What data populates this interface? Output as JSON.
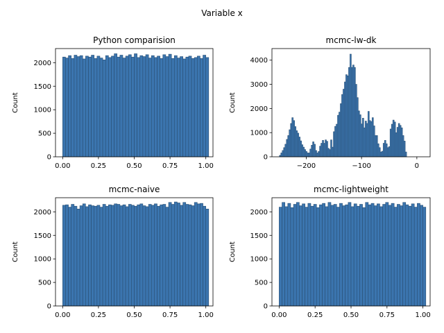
{
  "figure": {
    "suptitle": "Variable x"
  },
  "style": {
    "bar_fill": "#3b75af",
    "bar_edge": "#2a4f73",
    "frame": "#000000"
  },
  "chart_data": [
    {
      "type": "bar",
      "title": "Python comparision",
      "xlabel": "",
      "ylabel": "Count",
      "xlim": [
        -0.05,
        1.05
      ],
      "ylim": [
        0,
        2300
      ],
      "xticks": [
        0.0,
        0.25,
        0.5,
        0.75,
        1.0
      ],
      "xtick_labels": [
        "0.00",
        "0.25",
        "0.50",
        "0.75",
        "1.00"
      ],
      "yticks": [
        0,
        500,
        1000,
        1500,
        2000
      ],
      "ytick_labels": [
        "0",
        "500",
        "1000",
        "1500",
        "2000"
      ],
      "bin_start": 0,
      "bin_width": 0.02,
      "values": [
        2120,
        2100,
        2150,
        2090,
        2160,
        2130,
        2150,
        2080,
        2140,
        2120,
        2160,
        2090,
        2140,
        2100,
        2060,
        2150,
        2110,
        2140,
        2190,
        2120,
        2160,
        2100,
        2140,
        2170,
        2120,
        2190,
        2110,
        2150,
        2130,
        2170,
        2100,
        2150,
        2110,
        2140,
        2090,
        2170,
        2130,
        2180,
        2090,
        2150,
        2100,
        2130,
        2080,
        2120,
        2140,
        2090,
        2110,
        2140,
        2090,
        2160,
        2110
      ]
    },
    {
      "type": "bar",
      "title": "mcmc-lw-dk",
      "xlabel": "",
      "ylabel": "Count",
      "xlim": [
        -262,
        24
      ],
      "ylim": [
        0,
        4480
      ],
      "xticks": [
        -200,
        -100,
        0
      ],
      "xtick_labels": [
        "−200",
        "−100",
        "0"
      ],
      "yticks": [
        0,
        1000,
        2000,
        3000,
        4000
      ],
      "ytick_labels": [
        "0",
        "1000",
        "2000",
        "3000",
        "4000"
      ],
      "bin_start": -248.5,
      "bin_width": 2.5,
      "values": [
        60,
        160,
        260,
        380,
        520,
        720,
        880,
        1120,
        1380,
        1620,
        1500,
        1250,
        1080,
        980,
        820,
        660,
        500,
        400,
        300,
        220,
        160,
        160,
        320,
        480,
        620,
        520,
        260,
        160,
        220,
        440,
        560,
        680,
        560,
        700,
        640,
        350,
        300,
        700,
        400,
        1040,
        1260,
        1350,
        1720,
        1850,
        2200,
        2580,
        2800,
        3100,
        3400,
        3350,
        3700,
        4250,
        3700,
        3800,
        3700,
        3000,
        2450,
        1900,
        1740,
        1360,
        1600,
        1200,
        1480,
        1380,
        1880,
        1500,
        1460,
        1620,
        1280,
        880,
        880,
        540,
        380,
        200,
        230,
        560,
        680,
        540,
        380,
        420,
        1150,
        1350,
        1520,
        1440,
        1000,
        1220,
        1380,
        1300,
        1200,
        880,
        650,
        200
      ]
    },
    {
      "type": "bar",
      "title": "mcmc-naive",
      "xlabel": "",
      "ylabel": "Count",
      "xlim": [
        -0.05,
        1.05
      ],
      "ylim": [
        0,
        2300
      ],
      "xticks": [
        0.0,
        0.25,
        0.5,
        0.75,
        1.0
      ],
      "xtick_labels": [
        "0.00",
        "0.25",
        "0.50",
        "0.75",
        "1.00"
      ],
      "yticks": [
        0,
        500,
        1000,
        1500,
        2000
      ],
      "ytick_labels": [
        "0",
        "500",
        "1000",
        "1500",
        "2000"
      ],
      "bin_start": 0,
      "bin_width": 0.02,
      "values": [
        2140,
        2150,
        2100,
        2160,
        2120,
        2060,
        2130,
        2170,
        2110,
        2150,
        2130,
        2120,
        2140,
        2100,
        2160,
        2120,
        2150,
        2140,
        2170,
        2160,
        2130,
        2150,
        2110,
        2160,
        2140,
        2120,
        2150,
        2170,
        2130,
        2110,
        2160,
        2140,
        2170,
        2120,
        2150,
        2160,
        2100,
        2200,
        2160,
        2210,
        2190,
        2140,
        2200,
        2160,
        2150,
        2130,
        2200,
        2170,
        2180,
        2120,
        2060
      ]
    },
    {
      "type": "bar",
      "title": "mcmc-lightweight",
      "xlabel": "",
      "ylabel": "Count",
      "xlim": [
        -0.05,
        1.05
      ],
      "ylim": [
        0,
        2300
      ],
      "xticks": [
        0.0,
        0.25,
        0.5,
        0.75,
        1.0
      ],
      "xtick_labels": [
        "0.00",
        "0.25",
        "0.50",
        "0.75",
        "1.00"
      ],
      "yticks": [
        0,
        500,
        1000,
        1500,
        2000
      ],
      "ytick_labels": [
        "0",
        "500",
        "1000",
        "1500",
        "2000"
      ],
      "bin_start": 0,
      "bin_width": 0.02,
      "values": [
        2100,
        2200,
        2110,
        2180,
        2090,
        2160,
        2200,
        2130,
        2170,
        2100,
        2180,
        2120,
        2160,
        2090,
        2150,
        2180,
        2110,
        2200,
        2140,
        2160,
        2100,
        2180,
        2130,
        2150,
        2200,
        2110,
        2170,
        2120,
        2160,
        2090,
        2200,
        2150,
        2180,
        2130,
        2170,
        2110,
        2160,
        2200,
        2140,
        2180,
        2100,
        2160,
        2130,
        2200,
        2150,
        2120,
        2170,
        2100,
        2180,
        2140,
        2100
      ]
    }
  ]
}
